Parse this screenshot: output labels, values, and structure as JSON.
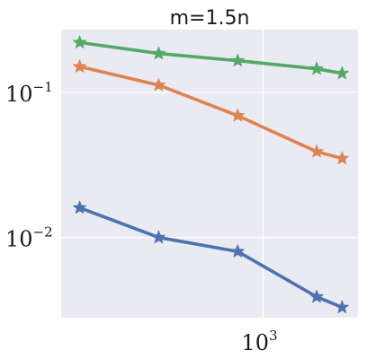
{
  "chart_data": {
    "type": "line",
    "title": "m=1.5n",
    "xlabel": "",
    "ylabel": "",
    "xscale": "log",
    "yscale": "log",
    "xlim": [
      170,
      2300
    ],
    "ylim": [
      0.0028,
      0.27
    ],
    "grid": true,
    "x": [
      200,
      400,
      800,
      1600,
      2000
    ],
    "x_ticks": [
      {
        "value": 1000,
        "base": "10",
        "exp": "3"
      }
    ],
    "y_ticks": [
      {
        "value": 0.1,
        "base": "10",
        "exp": "−1"
      },
      {
        "value": 0.01,
        "base": "10",
        "exp": "−2"
      }
    ],
    "marker": "star",
    "series": [
      {
        "color": "#55a868",
        "values": [
          0.22,
          0.185,
          0.165,
          0.145,
          0.135
        ]
      },
      {
        "color": "#dd8452",
        "values": [
          0.15,
          0.112,
          0.069,
          0.039,
          0.035
        ]
      },
      {
        "color": "#4c72b0",
        "values": [
          0.016,
          0.01,
          0.008,
          0.0039,
          0.0033
        ]
      }
    ]
  }
}
